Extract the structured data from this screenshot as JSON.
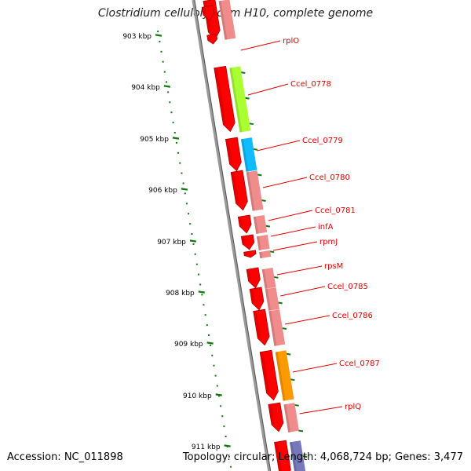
{
  "header": {
    "title": "Clostridium cellulolyticum H10, complete genome"
  },
  "footer": {
    "accession": "Accession: NC_011898",
    "summary": "Topology: circular; Length: 4,068,724 bp; Genes: 3,477"
  },
  "ruler": {
    "ticks": [
      "903 kbp",
      "904 kbp",
      "905 kbp",
      "906 kbp",
      "907 kbp",
      "908 kbp",
      "909 kbp",
      "910 kbp",
      "911 kbp"
    ]
  },
  "colors": {
    "cds": "#ff0000",
    "translation": "#f08c8c",
    "green": "#aaff33",
    "cyan": "#11bbff",
    "orange": "#ff9900",
    "purple": "#7777bb",
    "label": "#e00000",
    "tick": "#117711"
  },
  "genes": [
    {
      "name": "rplO"
    },
    {
      "name": "Ccel_0778"
    },
    {
      "name": "Ccel_0779"
    },
    {
      "name": "Ccel_0780"
    },
    {
      "name": "Ccel_0781"
    },
    {
      "name": "infA"
    },
    {
      "name": "rpmJ"
    },
    {
      "name": "rpsM"
    },
    {
      "name": "Ccel_0785"
    },
    {
      "name": "Ccel_0786"
    },
    {
      "name": "Ccel_0787"
    },
    {
      "name": "rplQ"
    }
  ]
}
